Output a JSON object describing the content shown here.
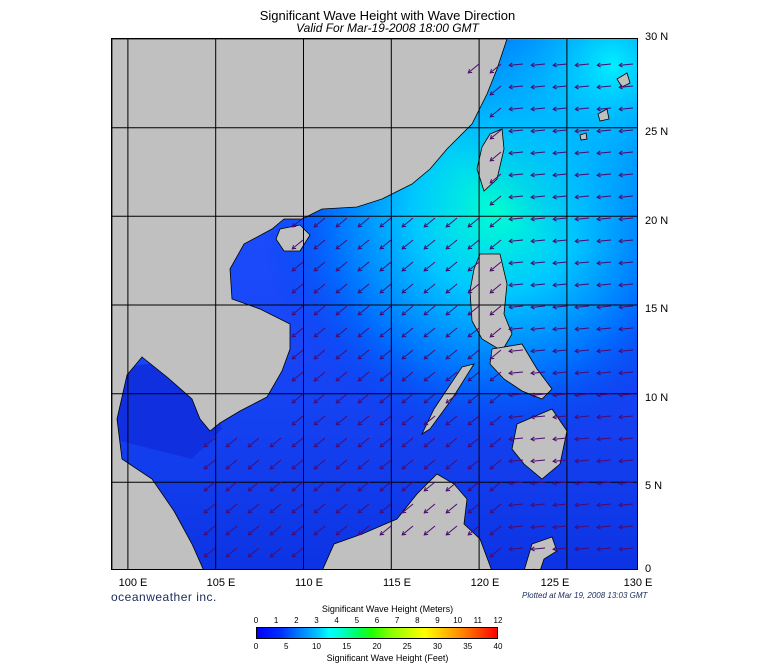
{
  "header": {
    "title": "Significant Wave Height with Wave Direction",
    "subtitle": "Valid For Mar-19-2008 18:00 GMT"
  },
  "map": {
    "lat_labels": [
      "30 N",
      "25 N",
      "20 N",
      "15 N",
      "10 N",
      "5 N",
      "0"
    ],
    "lon_labels": [
      "100 E",
      "105 E",
      "110 E",
      "115 E",
      "120 E",
      "125 E",
      "130 E"
    ],
    "lon_range": [
      99,
      129
    ],
    "lat_range": [
      0,
      30
    ],
    "land_color": "#c0c0c0",
    "grid_color": "#000000",
    "arrow_color": "#4b0a6e",
    "wave_direction": "toward southwest (from northeast)"
  },
  "footer": {
    "brand": "oceanweather inc.",
    "plotted": "Plotted at Mar 19, 2008 13:03 GMT"
  },
  "colorbar": {
    "title_meters": "Significant Wave Height (Meters)",
    "title_feet": "Significant Wave Height (Feet)",
    "meters_ticks": [
      "0",
      "1",
      "2",
      "3",
      "4",
      "5",
      "6",
      "7",
      "8",
      "9",
      "10",
      "11",
      "12"
    ],
    "feet_ticks": [
      "0",
      "5",
      "10",
      "15",
      "20",
      "25",
      "30",
      "35",
      "40"
    ]
  }
}
